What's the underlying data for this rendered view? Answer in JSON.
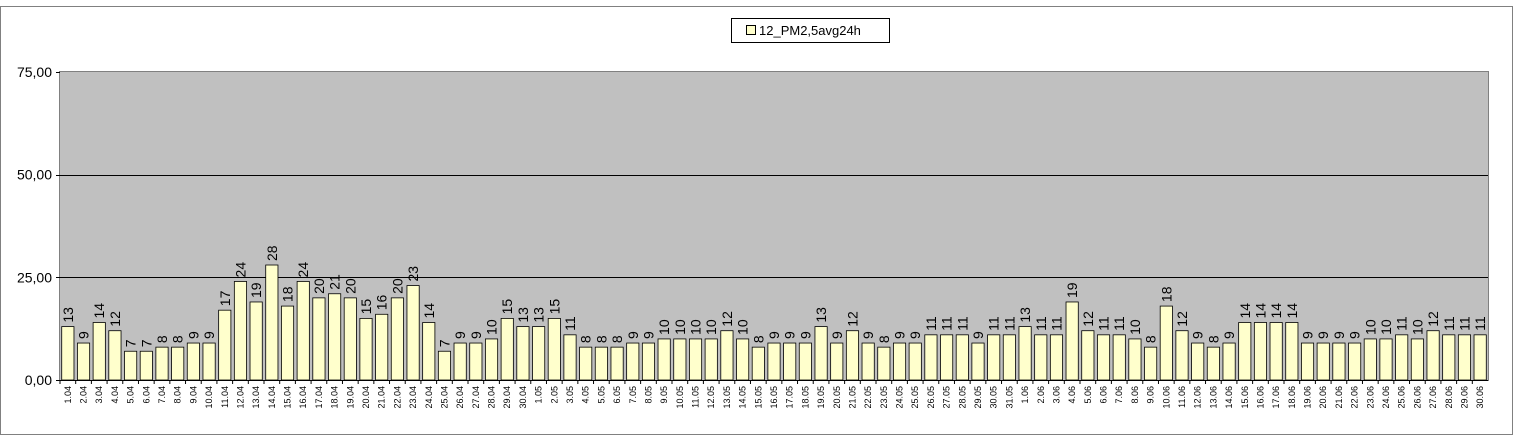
{
  "chart_data": {
    "type": "bar",
    "series": [
      {
        "name": "12_PM2,5avg24h",
        "values": [
          13,
          9,
          14,
          12,
          7,
          7,
          8,
          8,
          9,
          9,
          17,
          24,
          19,
          28,
          18,
          24,
          20,
          21,
          20,
          15,
          16,
          20,
          23,
          14,
          7,
          9,
          9,
          10,
          15,
          13,
          13,
          15,
          11,
          8,
          8,
          8,
          9,
          9,
          10,
          10,
          10,
          10,
          12,
          10,
          8,
          9,
          9,
          9,
          13,
          9,
          12,
          9,
          8,
          9,
          9,
          11,
          11,
          11,
          9,
          11,
          11,
          13,
          11,
          11,
          19,
          12,
          11,
          11,
          10,
          8,
          18,
          12,
          9,
          8,
          9,
          14,
          14,
          14,
          14,
          9,
          9,
          9,
          9,
          10,
          10,
          11,
          10,
          12,
          11,
          11,
          11
        ]
      }
    ],
    "categories": [
      "1.04",
      "2.04",
      "3.04",
      "4.04",
      "5.04",
      "6.04",
      "7.04",
      "8.04",
      "9.04",
      "10.04",
      "11.04",
      "12.04",
      "13.04",
      "14.04",
      "15.04",
      "16.04",
      "17.04",
      "18.04",
      "19.04",
      "20.04",
      "21.04",
      "22.04",
      "23.04",
      "24.04",
      "25.04",
      "26.04",
      "27.04",
      "28.04",
      "29.04",
      "30.04",
      "1.05",
      "2.05",
      "3.05",
      "4.05",
      "5.05",
      "6.05",
      "7.05",
      "8.05",
      "9.05",
      "10.05",
      "11.05",
      "12.05",
      "13.05",
      "14.05",
      "15.05",
      "16.05",
      "17.05",
      "18.05",
      "19.05",
      "20.05",
      "21.05",
      "22.05",
      "23.05",
      "24.05",
      "25.05",
      "26.05",
      "27.05",
      "28.05",
      "29.05",
      "30.05",
      "31.05",
      "1.06",
      "2.06",
      "3.06",
      "4.06",
      "5.06",
      "6.06",
      "7.06",
      "8.06",
      "9.06",
      "10.06",
      "11.06",
      "12.06",
      "13.06",
      "14.06",
      "15.06",
      "16.06",
      "17.06",
      "18.06",
      "19.06",
      "20.06",
      "21.06",
      "22.06",
      "23.06",
      "24.06",
      "25.06",
      "26.06",
      "27.06",
      "28.06",
      "29.06",
      "30.06"
    ],
    "yticks": [
      "0,00",
      "25,00",
      "50,00",
      "75,00"
    ],
    "ylim": [
      0,
      75
    ],
    "grid": true,
    "legend_position": "top-center",
    "colors": {
      "bar_fill": "#ffffcc",
      "bar_stroke": "#000000",
      "plot_bg": "#c0c0c0",
      "grid": "#000000"
    }
  }
}
